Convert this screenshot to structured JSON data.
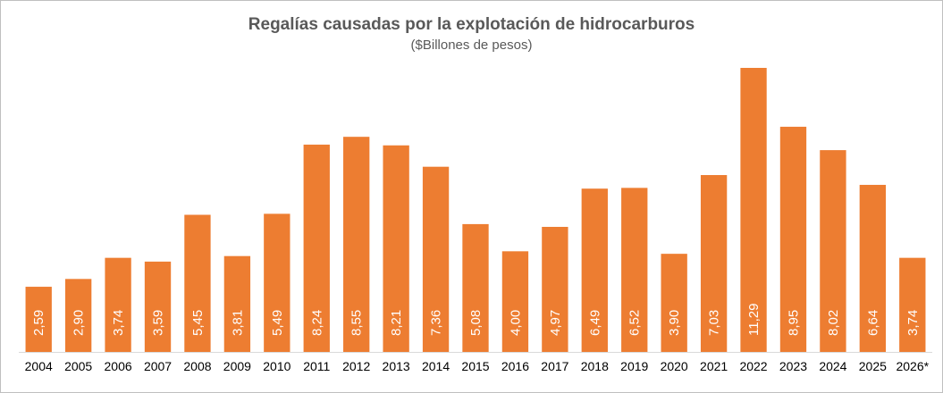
{
  "chart_data": {
    "type": "bar",
    "title": "Regalías causadas por la explotación de hidrocarburos",
    "subtitle": "($Billones de pesos)",
    "categories": [
      "2004",
      "2005",
      "2006",
      "2007",
      "2008",
      "2009",
      "2010",
      "2011",
      "2012",
      "2013",
      "2014",
      "2015",
      "2016",
      "2017",
      "2018",
      "2019",
      "2020",
      "2021",
      "2022",
      "2023",
      "2024",
      "2025",
      "2026*"
    ],
    "values": [
      2.59,
      2.9,
      3.74,
      3.59,
      5.45,
      3.81,
      5.49,
      8.24,
      8.55,
      8.21,
      7.36,
      5.08,
      4.0,
      4.97,
      6.49,
      6.52,
      3.9,
      7.03,
      11.29,
      8.95,
      8.02,
      6.64,
      3.74
    ],
    "value_labels": [
      "2,59",
      "2,90",
      "3,74",
      "3,59",
      "5,45",
      "3,81",
      "5,49",
      "8,24",
      "8,55",
      "8,21",
      "7,36",
      "5,08",
      "4,00",
      "4,97",
      "6,49",
      "6,52",
      "3,90",
      "7,03",
      "11,29",
      "8,95",
      "8,02",
      "6,64",
      "3,74"
    ],
    "ylim": [
      0,
      11.29
    ],
    "grid": false,
    "legend": "none",
    "bar_color": "#ED7D31",
    "axis_color": "#d9d9d9",
    "label_color": "#ffffff"
  }
}
